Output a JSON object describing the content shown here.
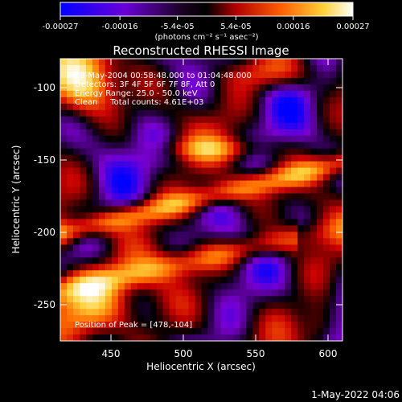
{
  "chart_data": {
    "type": "heatmap",
    "title": "Reconstructed RHESSI Image",
    "xlabel": "Heliocentric X (arcsec)",
    "ylabel": "Heliocentric Y (arcsec)",
    "xlim": [
      415,
      610
    ],
    "ylim": [
      -275,
      -80
    ],
    "x_ticks": [
      450,
      500,
      550,
      600
    ],
    "y_ticks": [
      -100,
      -150,
      -200,
      -250
    ],
    "colorbar": {
      "range": [
        -0.00027,
        0.00027
      ],
      "tick_values": [
        -0.00027,
        -0.00016,
        -5.4e-05,
        5.4e-05,
        0.00016,
        0.00027
      ],
      "tick_labels": [
        "-0.00027",
        "-0.00016",
        "-5.4e-05",
        "5.4e-05",
        "0.00016",
        "0.00027"
      ],
      "unit_label": "(photons cm⁻² s⁻¹ asec⁻²)",
      "colormap": [
        "#0000ff",
        "#7a00d0",
        "#000000",
        "#c80000",
        "#ff6a00",
        "#ffd23a",
        "#ffffff"
      ]
    },
    "annotations": {
      "time_range": "28-May-2004 00:58:48.000 to 01:04:48.000",
      "detectors": "Detectors: 3F 4F 5F 6F 7F 8F, Att 0",
      "energy_range": "Energy Range: 25.0 - 50.0 keV",
      "clean_counts": "Clean     Total counts: 4.61E+03",
      "peak_position": "Position of Peak = [478,-104]"
    },
    "peak": {
      "x": 478,
      "y": -104
    },
    "footer_date": "1-May-2022 04:06"
  }
}
